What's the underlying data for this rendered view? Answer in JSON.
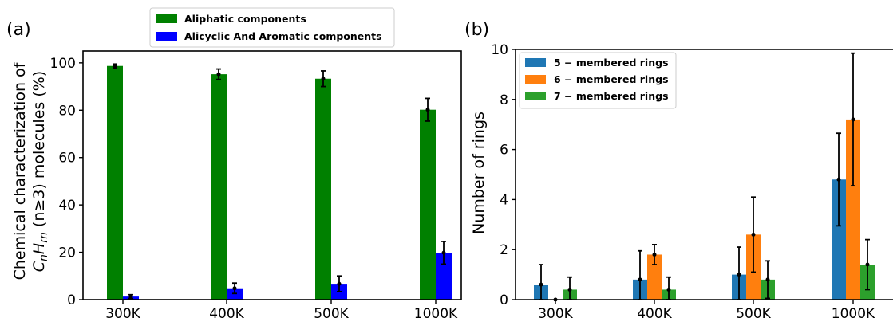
{
  "chart_data": [
    {
      "panel_label": "(a)",
      "type": "bar",
      "ylabel_line1": "Chemical characterization of",
      "ylabel_line2": "CnHm (n≥3) molecules (%)",
      "categories": [
        "300K",
        "400K",
        "500K",
        "1000K"
      ],
      "ylim": [
        0,
        105
      ],
      "yticks": [
        0,
        20,
        40,
        60,
        80,
        100
      ],
      "legend_position": "top-center-outside",
      "series": [
        {
          "name": "Aliphatic components",
          "color": "#008000",
          "values": [
            98.7,
            95.2,
            93.3,
            80.2
          ],
          "errors": [
            0.8,
            2.2,
            3.3,
            4.8
          ]
        },
        {
          "name": "Alicyclic And Aromatic components",
          "color": "#0000ff",
          "values": [
            1.3,
            4.8,
            6.7,
            19.8
          ],
          "errors": [
            0.8,
            2.2,
            3.3,
            4.8
          ]
        }
      ]
    },
    {
      "panel_label": "(b)",
      "type": "bar",
      "ylabel": "Number of rings",
      "categories": [
        "300K",
        "400K",
        "500K",
        "1000K"
      ],
      "ylim": [
        0,
        10
      ],
      "yticks": [
        0,
        2,
        4,
        6,
        8,
        10
      ],
      "legend_position": "top-left",
      "series": [
        {
          "name": "5 −  membered rings",
          "color": "#1f77b4",
          "values": [
            0.6,
            0.8,
            1.0,
            4.8
          ],
          "errors": [
            0.8,
            1.15,
            1.1,
            1.85
          ]
        },
        {
          "name": "6 −  membered rings",
          "color": "#ff7f0e",
          "values": [
            0.0,
            1.8,
            2.6,
            7.2
          ],
          "errors": [
            0.0,
            0.4,
            1.5,
            2.65
          ]
        },
        {
          "name": "7 −  membered rings",
          "color": "#2ca02c",
          "values": [
            0.4,
            0.4,
            0.8,
            1.4
          ],
          "errors": [
            0.5,
            0.5,
            0.75,
            1.0
          ]
        }
      ]
    }
  ]
}
